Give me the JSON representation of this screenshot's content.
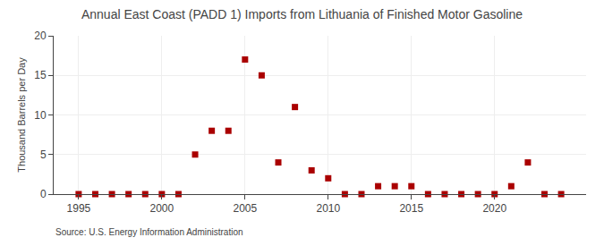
{
  "chart_data": {
    "type": "scatter",
    "title": "Annual East Coast (PADD 1) Imports from Lithuania of Finished Motor Gasoline",
    "ylabel": "Thousand Barrels per Day",
    "annotations": [
      "Source: U.S. Energy Information Administration"
    ],
    "x": [
      1995,
      1996,
      1997,
      1998,
      1999,
      2000,
      2001,
      2002,
      2003,
      2004,
      2005,
      2006,
      2007,
      2008,
      2009,
      2010,
      2011,
      2012,
      2013,
      2014,
      2015,
      2016,
      2017,
      2018,
      2019,
      2020,
      2021,
      2022,
      2023,
      2024
    ],
    "values": [
      0,
      0,
      0,
      0,
      0,
      0,
      0,
      5,
      8,
      8,
      17,
      15,
      4,
      11,
      3,
      2,
      0,
      0,
      1,
      1,
      1,
      0,
      0,
      0,
      0,
      0,
      1,
      4,
      0,
      0
    ],
    "color": "#aa0000",
    "marker": "square",
    "xlim": [
      1993.5,
      2025.5
    ],
    "ylim": [
      0,
      20
    ],
    "xticks": [
      1995,
      2000,
      2005,
      2010,
      2015,
      2020
    ],
    "yticks": [
      0,
      5,
      10,
      15,
      20
    ],
    "grid": true
  }
}
